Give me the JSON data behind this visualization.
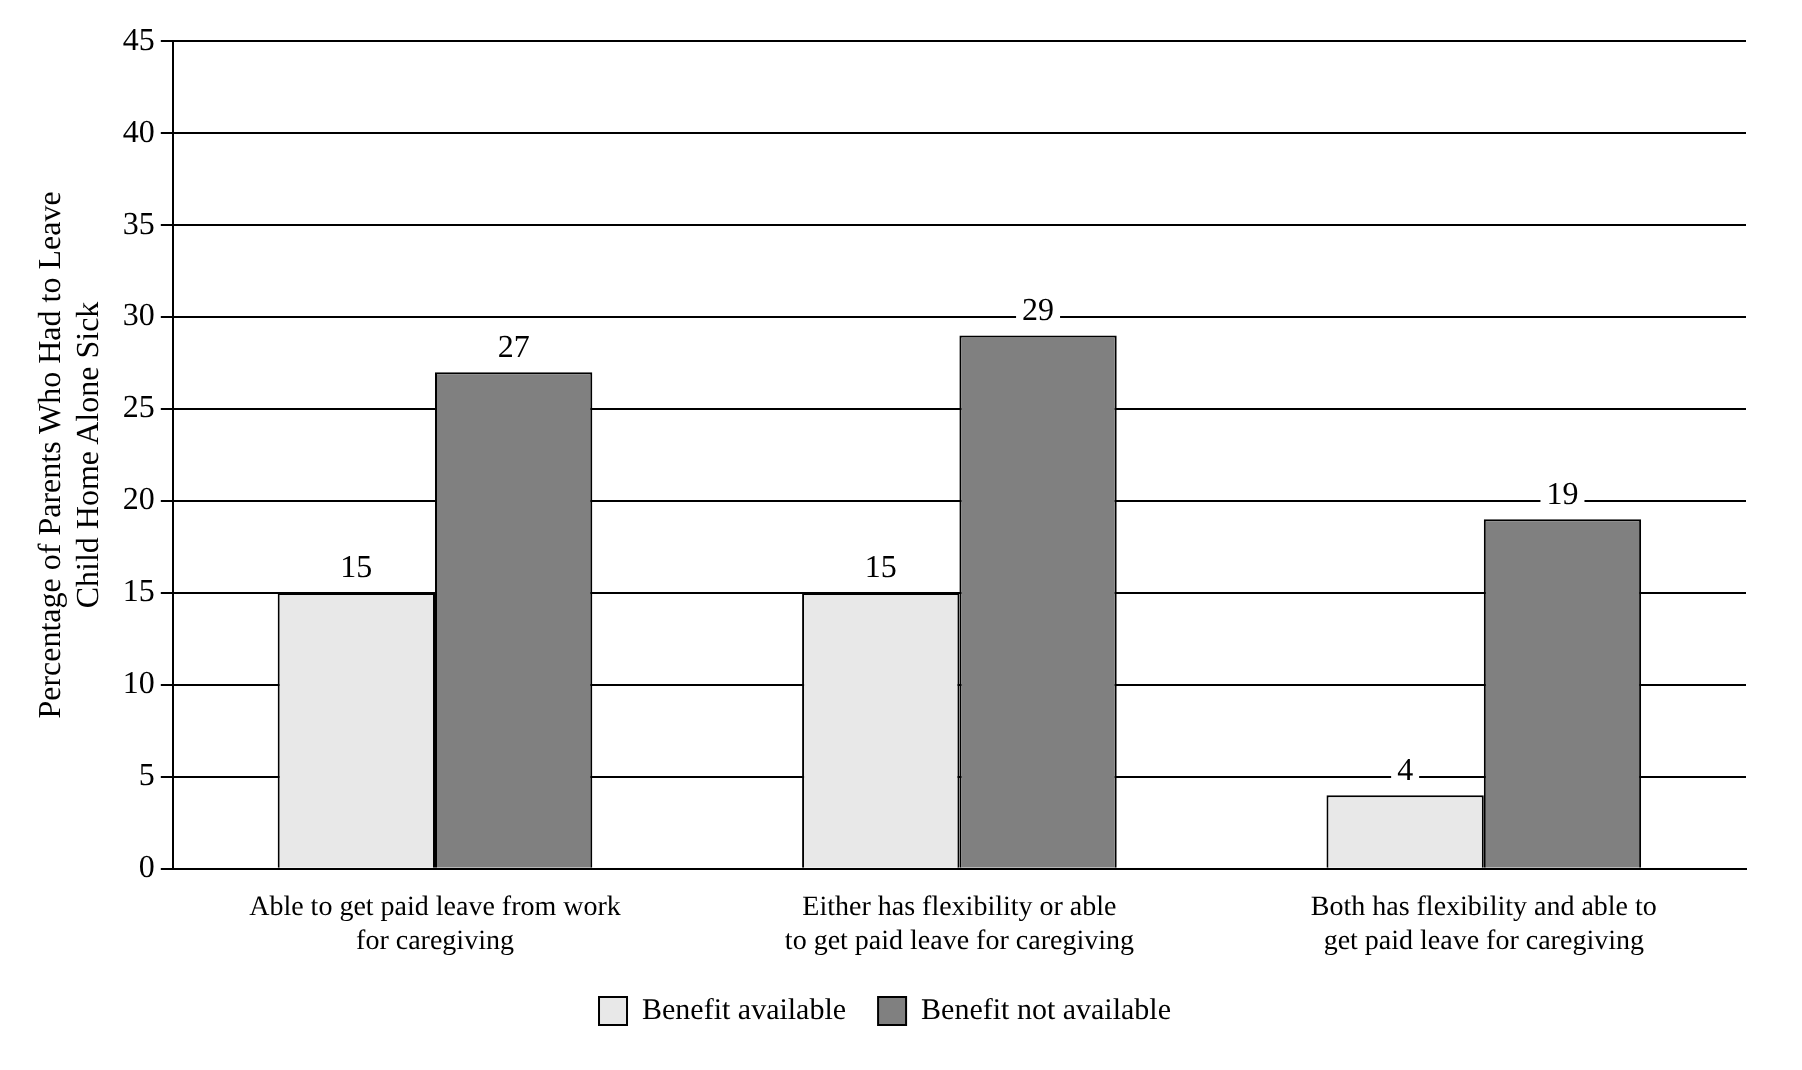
{
  "chart_data": {
    "type": "bar",
    "ylabel": "Percentage of Parents Who Had to Leave Child Home Alone Sick",
    "categories": [
      "Able to get paid leave from work for caregiving",
      "Either has flexibility or able to get paid leave for caregiving",
      "Both has flexibility and able to get paid leave for caregiving"
    ],
    "series": [
      {
        "name": "Benefit available",
        "color": "#e8e8e8",
        "values": [
          15,
          15,
          4
        ]
      },
      {
        "name": "Benefit not available",
        "color": "#808080",
        "values": [
          27,
          29,
          19
        ]
      }
    ],
    "ylim": [
      0,
      45
    ],
    "yticks": [
      0,
      5,
      10,
      15,
      20,
      25,
      30,
      35,
      40,
      45
    ],
    "grid": "y",
    "legend": "bottom",
    "data_labels": true
  }
}
